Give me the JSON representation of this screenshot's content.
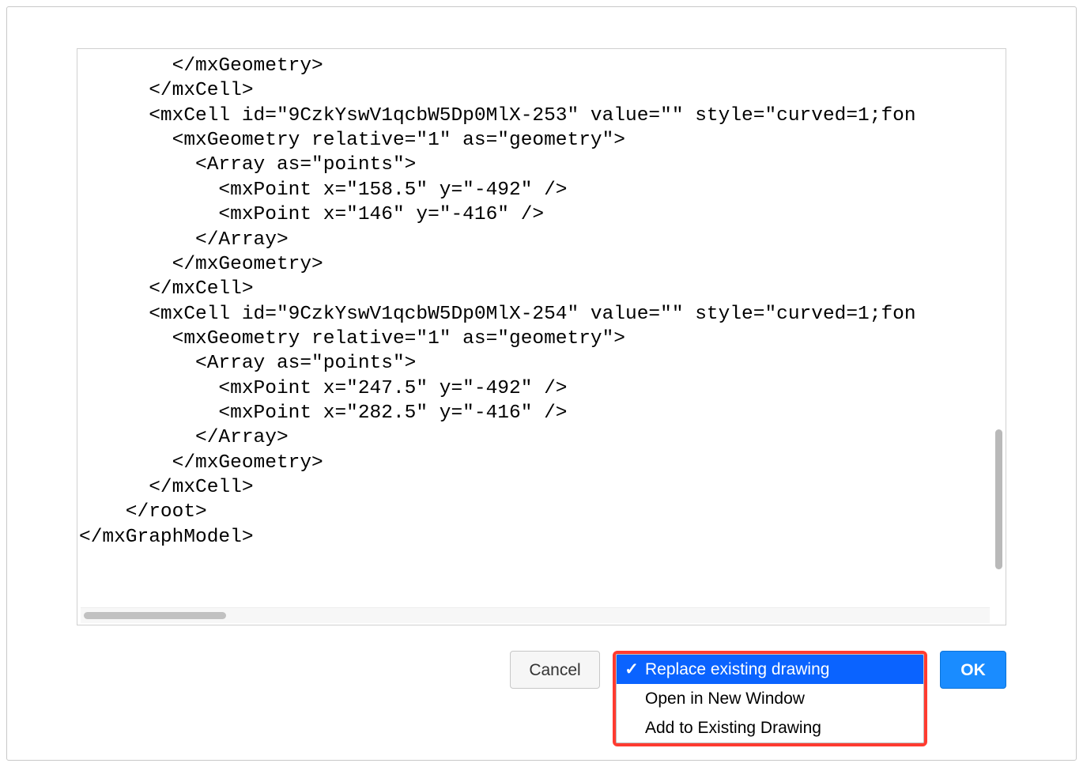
{
  "textarea": {
    "value": "        </mxGeometry>\n      </mxCell>\n      <mxCell id=\"9CzkYswV1qcbW5Dp0MlX-253\" value=\"\" style=\"curved=1;fon\n        <mxGeometry relative=\"1\" as=\"geometry\">\n          <Array as=\"points\">\n            <mxPoint x=\"158.5\" y=\"-492\" />\n            <mxPoint x=\"146\" y=\"-416\" />\n          </Array>\n        </mxGeometry>\n      </mxCell>\n      <mxCell id=\"9CzkYswV1qcbW5Dp0MlX-254\" value=\"\" style=\"curved=1;fon\n        <mxGeometry relative=\"1\" as=\"geometry\">\n          <Array as=\"points\">\n            <mxPoint x=\"247.5\" y=\"-492\" />\n            <mxPoint x=\"282.5\" y=\"-416\" />\n          </Array>\n        </mxGeometry>\n      </mxCell>\n    </root>\n</mxGraphModel>"
  },
  "buttons": {
    "cancel": "Cancel",
    "ok": "OK"
  },
  "dropdown": {
    "items": [
      {
        "label": "Replace existing drawing",
        "selected": true
      },
      {
        "label": "Open in New Window",
        "selected": false
      },
      {
        "label": "Add to Existing Drawing",
        "selected": false
      }
    ]
  },
  "highlight_color": "#ff3b30",
  "selection_color": "#0a63ff",
  "ok_button_bg": "#1a8cff"
}
